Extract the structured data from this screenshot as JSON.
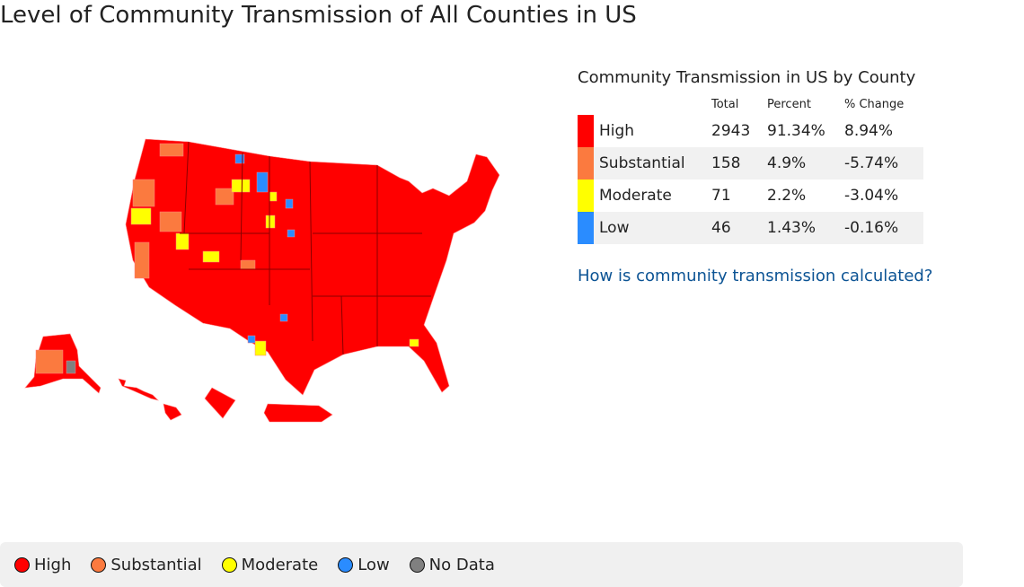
{
  "title": "Level of Community Transmission of All Counties in US",
  "table": {
    "title": "Community Transmission in US by County",
    "columns": [
      "Total",
      "Percent",
      "% Change"
    ],
    "rows": [
      {
        "level": "High",
        "color": "#ff0000",
        "total": "2943",
        "percent": "91.34%",
        "change": "8.94%"
      },
      {
        "level": "Substantial",
        "color": "#fb7a3f",
        "total": "158",
        "percent": "4.9%",
        "change": "-5.74%"
      },
      {
        "level": "Moderate",
        "color": "#ffff00",
        "total": "71",
        "percent": "2.2%",
        "change": "-3.04%"
      },
      {
        "level": "Low",
        "color": "#2a8cff",
        "total": "46",
        "percent": "1.43%",
        "change": "-0.16%"
      }
    ]
  },
  "link": "How is community transmission calculated?",
  "legend": [
    {
      "label": "High",
      "color": "#ff0000"
    },
    {
      "label": "Substantial",
      "color": "#fb7a3f"
    },
    {
      "label": "Moderate",
      "color": "#ffff00"
    },
    {
      "label": "Low",
      "color": "#2a8cff"
    },
    {
      "label": "No Data",
      "color": "#808080"
    }
  ]
}
